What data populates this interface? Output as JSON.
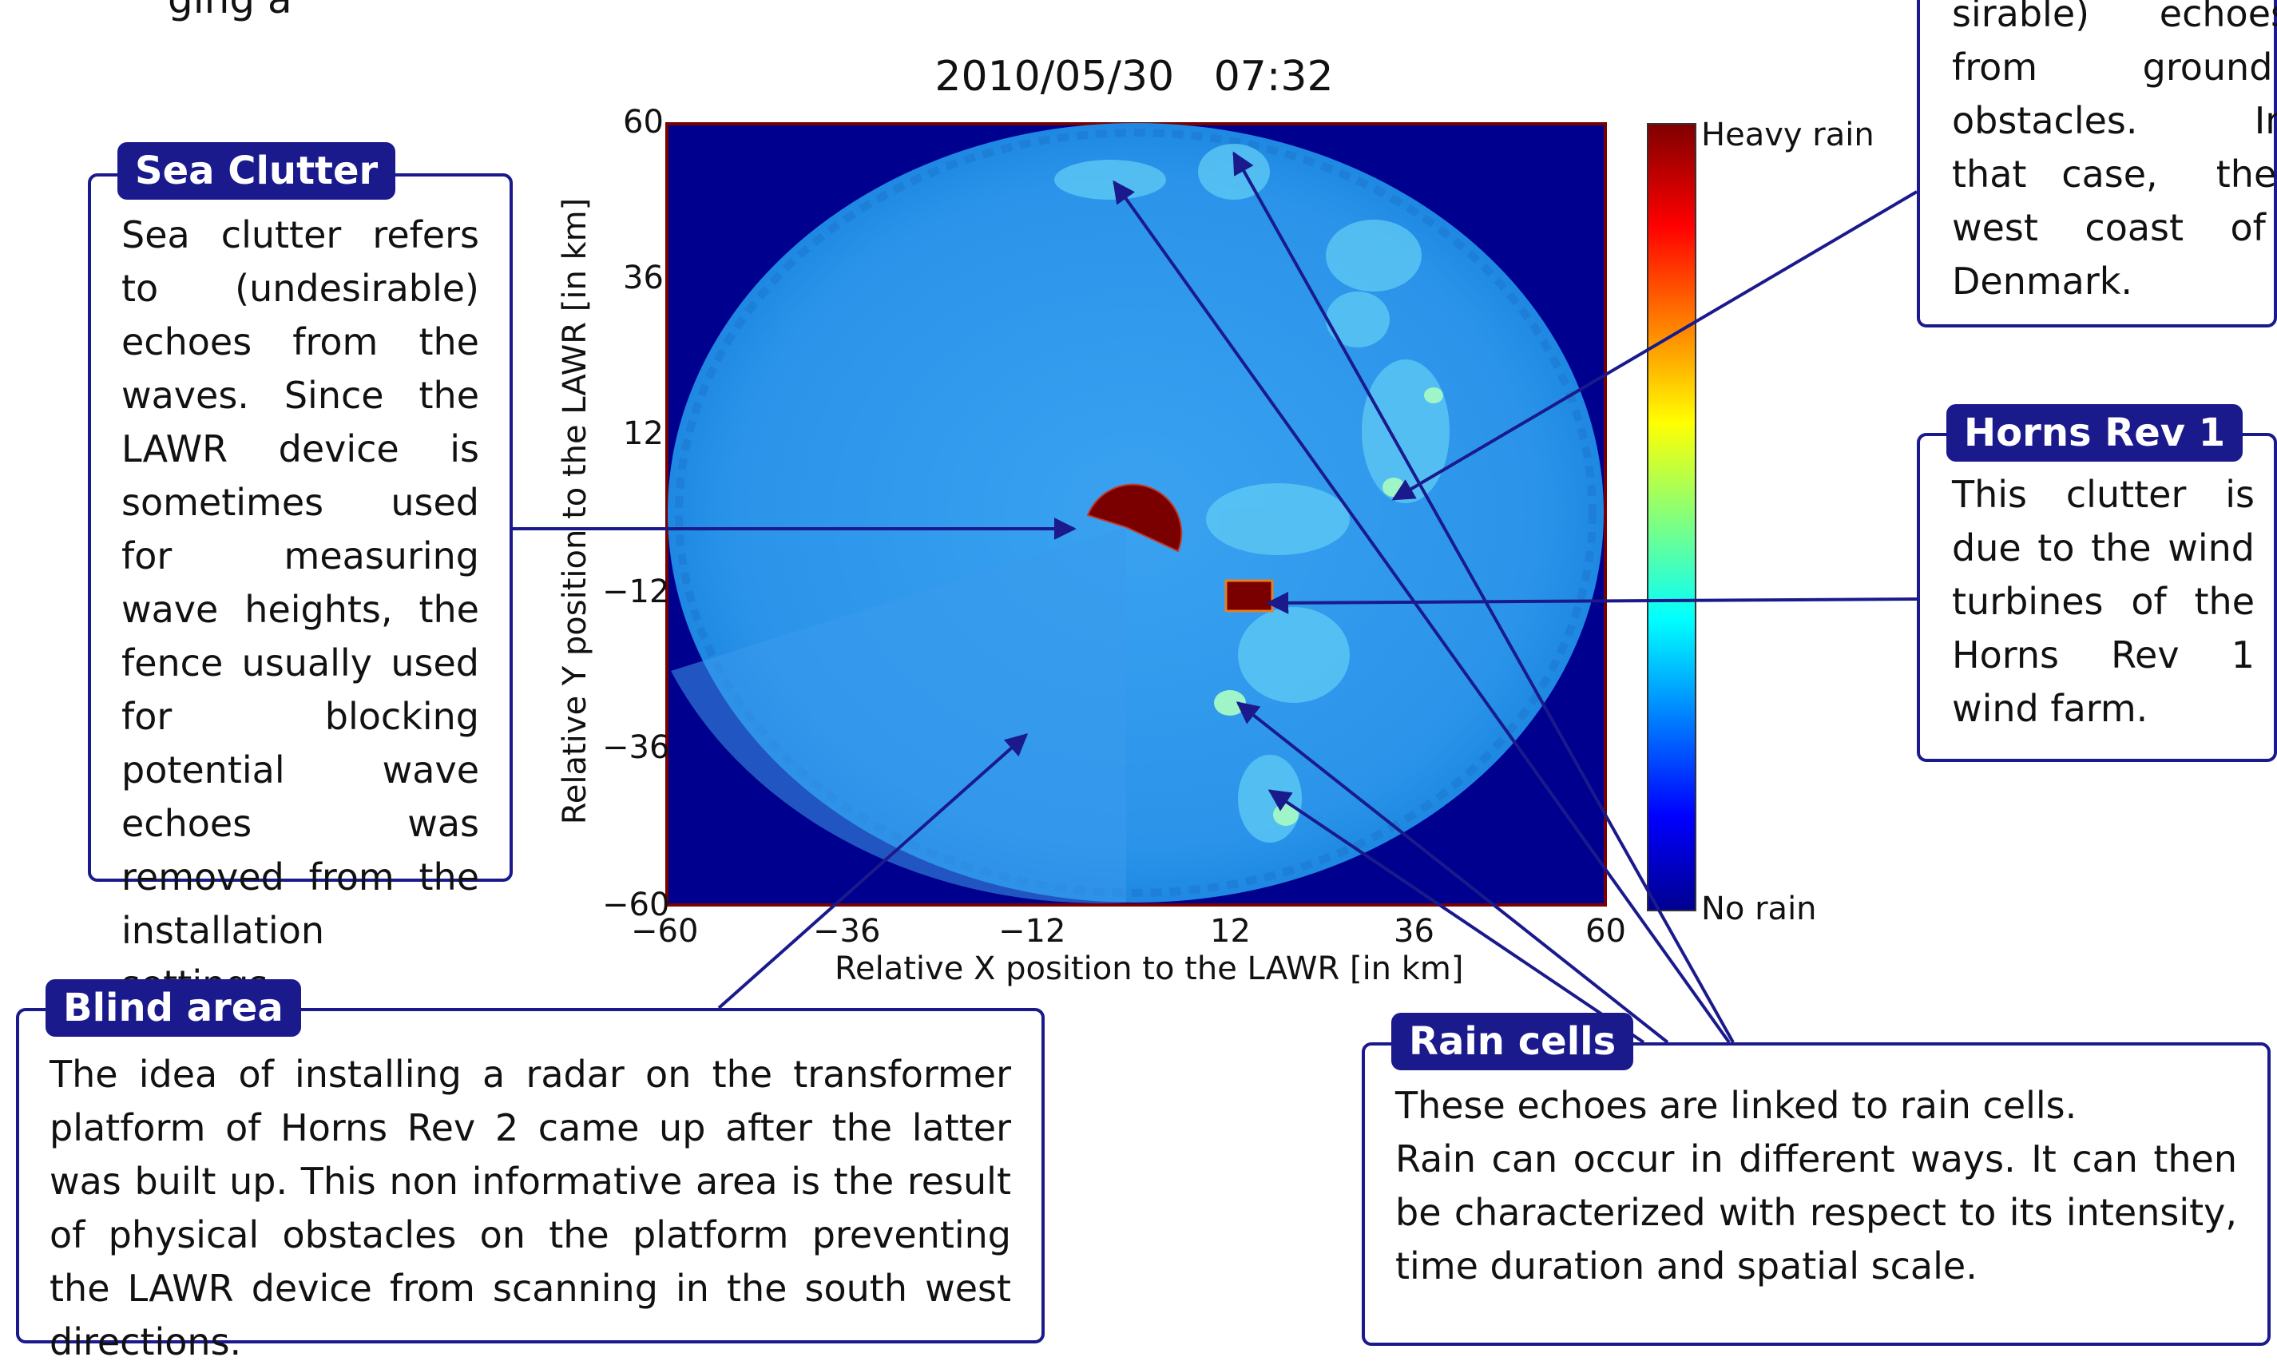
{
  "figure": {
    "title": "2010/05/30   07:32",
    "xlabel": "Relative X position to the LAWR [in km]",
    "ylabel": "Relative Y position to the LAWR [in km]",
    "x_ticks": [
      "−60",
      "−36",
      "−12",
      "12",
      "36",
      "60"
    ],
    "y_ticks": [
      "60",
      "36",
      "12",
      "−12",
      "−36",
      "−60"
    ],
    "colorbar_top": "Heavy rain",
    "colorbar_bottom": "No rain",
    "colors": {
      "background": "#00008f",
      "echo": "#1e8fe6",
      "heavy": "#7a0000",
      "box": "#1a1a8c"
    }
  },
  "header_fragment": "ging a",
  "callouts": {
    "sea_clutter": {
      "title": "Sea Clutter",
      "text": "Sea clutter refers to (undesirable) echoes from the waves. Since the LAWR device is sometimes used for measuring wave heights, the fence usually used for blocking potential wave echoes was removed from the installation settings."
    },
    "ground_clutter": {
      "lines": [
        "sirable)      echoes",
        "from         ground",
        "obstacles.          In",
        "that   case,     the",
        "west    coast    of",
        "Denmark."
      ]
    },
    "horns_rev": {
      "title": "Horns Rev 1",
      "text": "This clutter is due to the wind turbines of the Horns Rev 1 wind farm."
    },
    "blind_area": {
      "title": "Blind area",
      "text": "The idea of installing a radar on the transformer platform of Horns Rev 2 came up after the latter was built up. This non informative area is the result of physical obstacles on the platform preventing the LAWR device from scanning in the south west directions."
    },
    "rain_cells": {
      "title": "Rain cells",
      "line1": "These echoes are linked to rain cells.",
      "text": "Rain can occur in different ways. It can then be characterized with respect to its intensity, time duration and spatial scale."
    }
  }
}
